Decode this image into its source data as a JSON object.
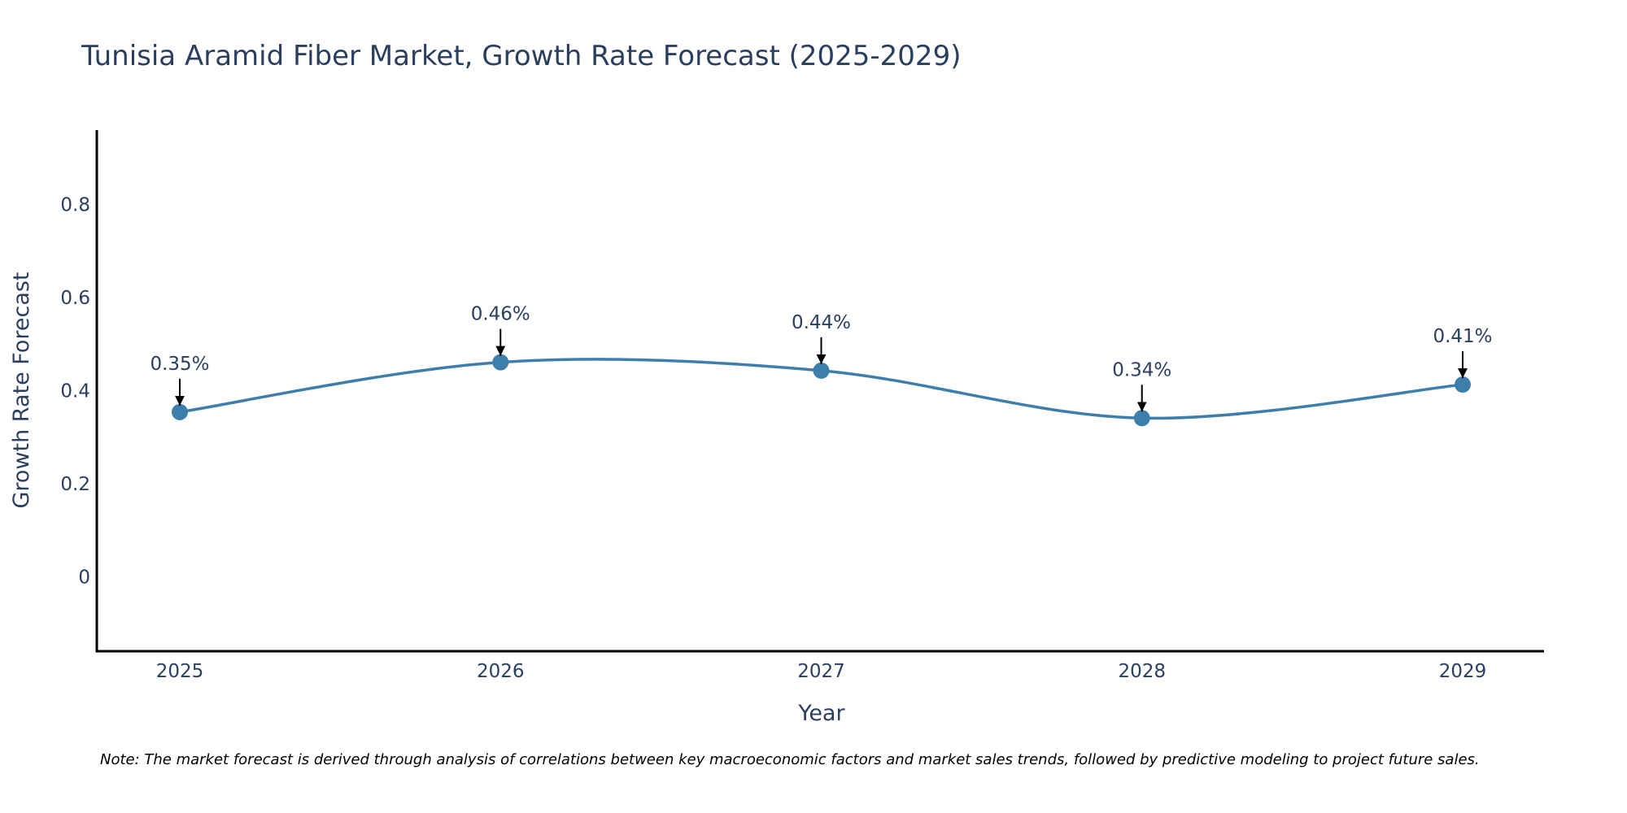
{
  "chart_data": {
    "type": "line",
    "title": "Tunisia Aramid Fiber Market, Growth Rate Forecast (2025-2029)",
    "xlabel": "Year",
    "ylabel": "Growth Rate Forecast",
    "categories": [
      "2025",
      "2026",
      "2027",
      "2028",
      "2029"
    ],
    "series": [
      {
        "name": "Growth Rate Forecast",
        "values": [
          0.354,
          0.461,
          0.443,
          0.341,
          0.413
        ],
        "labels": [
          "0.35%",
          "0.46%",
          "0.44%",
          "0.34%",
          "0.41%"
        ]
      }
    ],
    "ylim": [
      -0.16,
      0.96
    ],
    "yticks": [
      0,
      0.2,
      0.4,
      0.6,
      0.8
    ],
    "ytick_labels": [
      "0",
      "0.2",
      "0.4",
      "0.6",
      "0.8"
    ],
    "line_shape": "spline",
    "grid": false,
    "legend": "none"
  },
  "colors": {
    "line": "#3d7eaa",
    "marker": "#3d7eaa",
    "text": "#2a3f5f",
    "axis": "#000000",
    "arrow": "#000000"
  },
  "note": "Note: The market forecast is derived through analysis of correlations between key macroeconomic factors and market sales trends, followed by predictive modeling to project future sales."
}
